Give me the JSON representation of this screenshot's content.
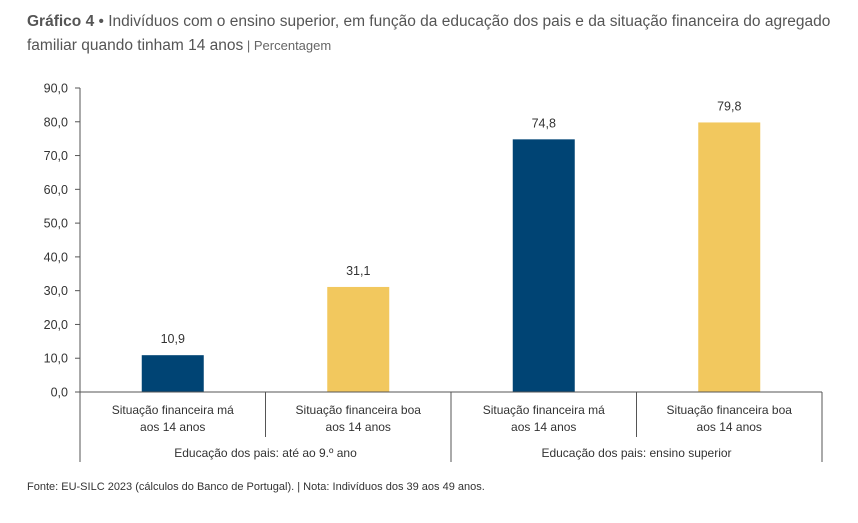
{
  "title": {
    "lead": "Gráfico 4",
    "separator": " • ",
    "text": "Indivíduos com o ensino superior, em função da educação dos pais e da situação financeira do agregado familiar quando tinham 14 anos",
    "unit": " | Percentagem"
  },
  "footnote": "Fonte: EU-SILC 2023 (cálculos do Banco de Portugal). | Nota: Indivíduos dos 39 aos 49 anos.",
  "colors": {
    "navy": "#004474",
    "yellow": "#F2C85E"
  },
  "chart_data": {
    "type": "bar",
    "ylim": [
      0,
      90
    ],
    "yticks": [
      "0,0",
      "10,0",
      "20,0",
      "30,0",
      "40,0",
      "50,0",
      "60,0",
      "70,0",
      "80,0",
      "90,0"
    ],
    "grid": false,
    "bars": [
      {
        "line1": "Situação financeira má",
        "line2": "aos 14 anos",
        "value": 10.9,
        "label": "10,9",
        "color": "#004474"
      },
      {
        "line1": "Situação financeira boa",
        "line2": "aos 14 anos",
        "value": 31.1,
        "label": "31,1",
        "color": "#F2C85E"
      },
      {
        "line1": "Situação financeira má",
        "line2": "aos 14 anos",
        "value": 74.8,
        "label": "74,8",
        "color": "#004474"
      },
      {
        "line1": "Situação financeira boa",
        "line2": "aos 14 anos",
        "value": 79.8,
        "label": "79,8",
        "color": "#F2C85E"
      }
    ],
    "groups": [
      {
        "label": "Educação dos pais: até ao 9.º ano"
      },
      {
        "label": "Educação dos pais: ensino superior"
      }
    ]
  }
}
